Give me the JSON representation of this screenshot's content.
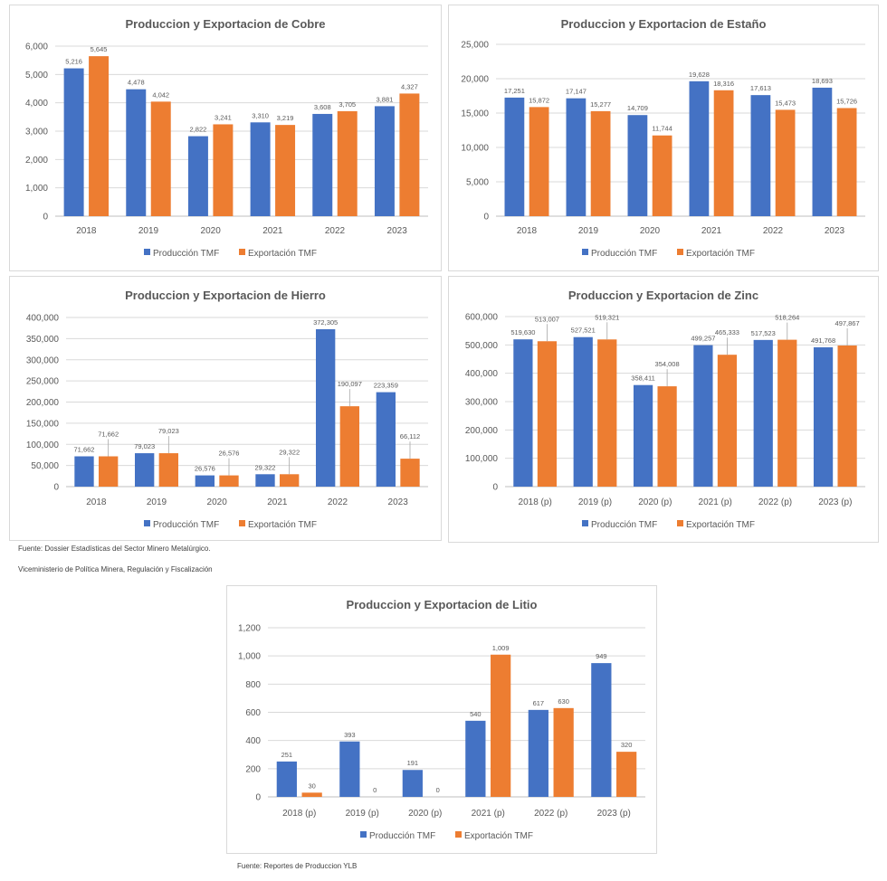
{
  "colors": {
    "production": "#4472C4",
    "export": "#ED7D31"
  },
  "notes": {
    "source_1": "Fuente: Dossier Estadísticas del Sector Minero Metalúrgico.",
    "source_2": "Viceministerio de Política Minera, Regulación y Fiscalización",
    "source_3": "Fuente: Reportes de Produccion YLB"
  },
  "chart_data": [
    {
      "id": "cobre",
      "type": "bar",
      "title": "Produccion y Exportacion de Cobre",
      "xlabel": "",
      "ylabel": "",
      "categories": [
        "2018",
        "2019",
        "2020",
        "2021",
        "2022",
        "2023"
      ],
      "series": [
        {
          "name": "Producción TMF",
          "values": [
            5216,
            4478,
            2822,
            3310,
            3608,
            3881
          ]
        },
        {
          "name": "Exportación TMF",
          "values": [
            5645,
            4042,
            3241,
            3219,
            3705,
            4327
          ]
        }
      ],
      "ylim": [
        0,
        6000
      ],
      "yticks": [
        0,
        1000,
        2000,
        3000,
        4000,
        5000,
        6000
      ],
      "grid": true,
      "legend": "bottom"
    },
    {
      "id": "estano",
      "type": "bar",
      "title": "Produccion y Exportacion de Estaño",
      "xlabel": "",
      "ylabel": "",
      "categories": [
        "2018",
        "2019",
        "2020",
        "2021",
        "2022",
        "2023"
      ],
      "series": [
        {
          "name": "Producción TMF",
          "values": [
            17251,
            17147,
            14709,
            19628,
            17613,
            18693
          ]
        },
        {
          "name": "Exportación TMF",
          "values": [
            15872,
            15277,
            11744,
            18316,
            15473,
            15726
          ]
        }
      ],
      "ylim": [
        0,
        25000
      ],
      "yticks": [
        0,
        5000,
        10000,
        15000,
        20000,
        25000
      ],
      "grid": true,
      "legend": "bottom"
    },
    {
      "id": "hierro",
      "type": "bar",
      "title": "Produccion y Exportacion de Hierro",
      "xlabel": "",
      "ylabel": "",
      "categories": [
        "2018",
        "2019",
        "2020",
        "2021",
        "2022",
        "2023"
      ],
      "series": [
        {
          "name": "Producción TMF",
          "values": [
            71662,
            79023,
            26576,
            29322,
            372305,
            223359
          ]
        },
        {
          "name": "Exportación TMF",
          "values": [
            71662,
            79023,
            26576,
            29322,
            190097,
            66112
          ]
        }
      ],
      "ylim": [
        0,
        400000
      ],
      "yticks": [
        0,
        50000,
        100000,
        150000,
        200000,
        250000,
        300000,
        350000,
        400000
      ],
      "grid": true,
      "legend": "bottom",
      "export_label_leaders": true
    },
    {
      "id": "zinc",
      "type": "bar",
      "title": "Produccion y Exportacion de Zinc",
      "xlabel": "",
      "ylabel": "",
      "categories": [
        "2018 (p)",
        "2019 (p)",
        "2020 (p)",
        "2021 (p)",
        "2022 (p)",
        "2023 (p)"
      ],
      "series": [
        {
          "name": "Producción TMF",
          "values": [
            519630,
            527521,
            358411,
            499257,
            517523,
            491768
          ]
        },
        {
          "name": "Exportación TMF",
          "values": [
            513007,
            519321,
            354008,
            465333,
            518264,
            497867
          ]
        }
      ],
      "ylim": [
        0,
        600000
      ],
      "yticks": [
        0,
        100000,
        200000,
        300000,
        400000,
        500000,
        600000
      ],
      "grid": true,
      "legend": "bottom",
      "export_label_leaders": true
    },
    {
      "id": "litio",
      "type": "bar",
      "title": "Produccion y Exportacion de Litio",
      "xlabel": "",
      "ylabel": "",
      "categories": [
        "2018 (p)",
        "2019 (p)",
        "2020 (p)",
        "2021 (p)",
        "2022 (p)",
        "2023 (p)"
      ],
      "series": [
        {
          "name": "Producción TMF",
          "values": [
            251,
            393,
            191,
            540,
            617,
            949
          ]
        },
        {
          "name": "Exportación TMF",
          "values": [
            30,
            0,
            0,
            1009,
            630,
            320
          ]
        }
      ],
      "ylim": [
        0,
        1200
      ],
      "yticks": [
        0,
        200,
        400,
        600,
        800,
        1000,
        1200
      ],
      "grid": true,
      "legend": "bottom"
    }
  ]
}
